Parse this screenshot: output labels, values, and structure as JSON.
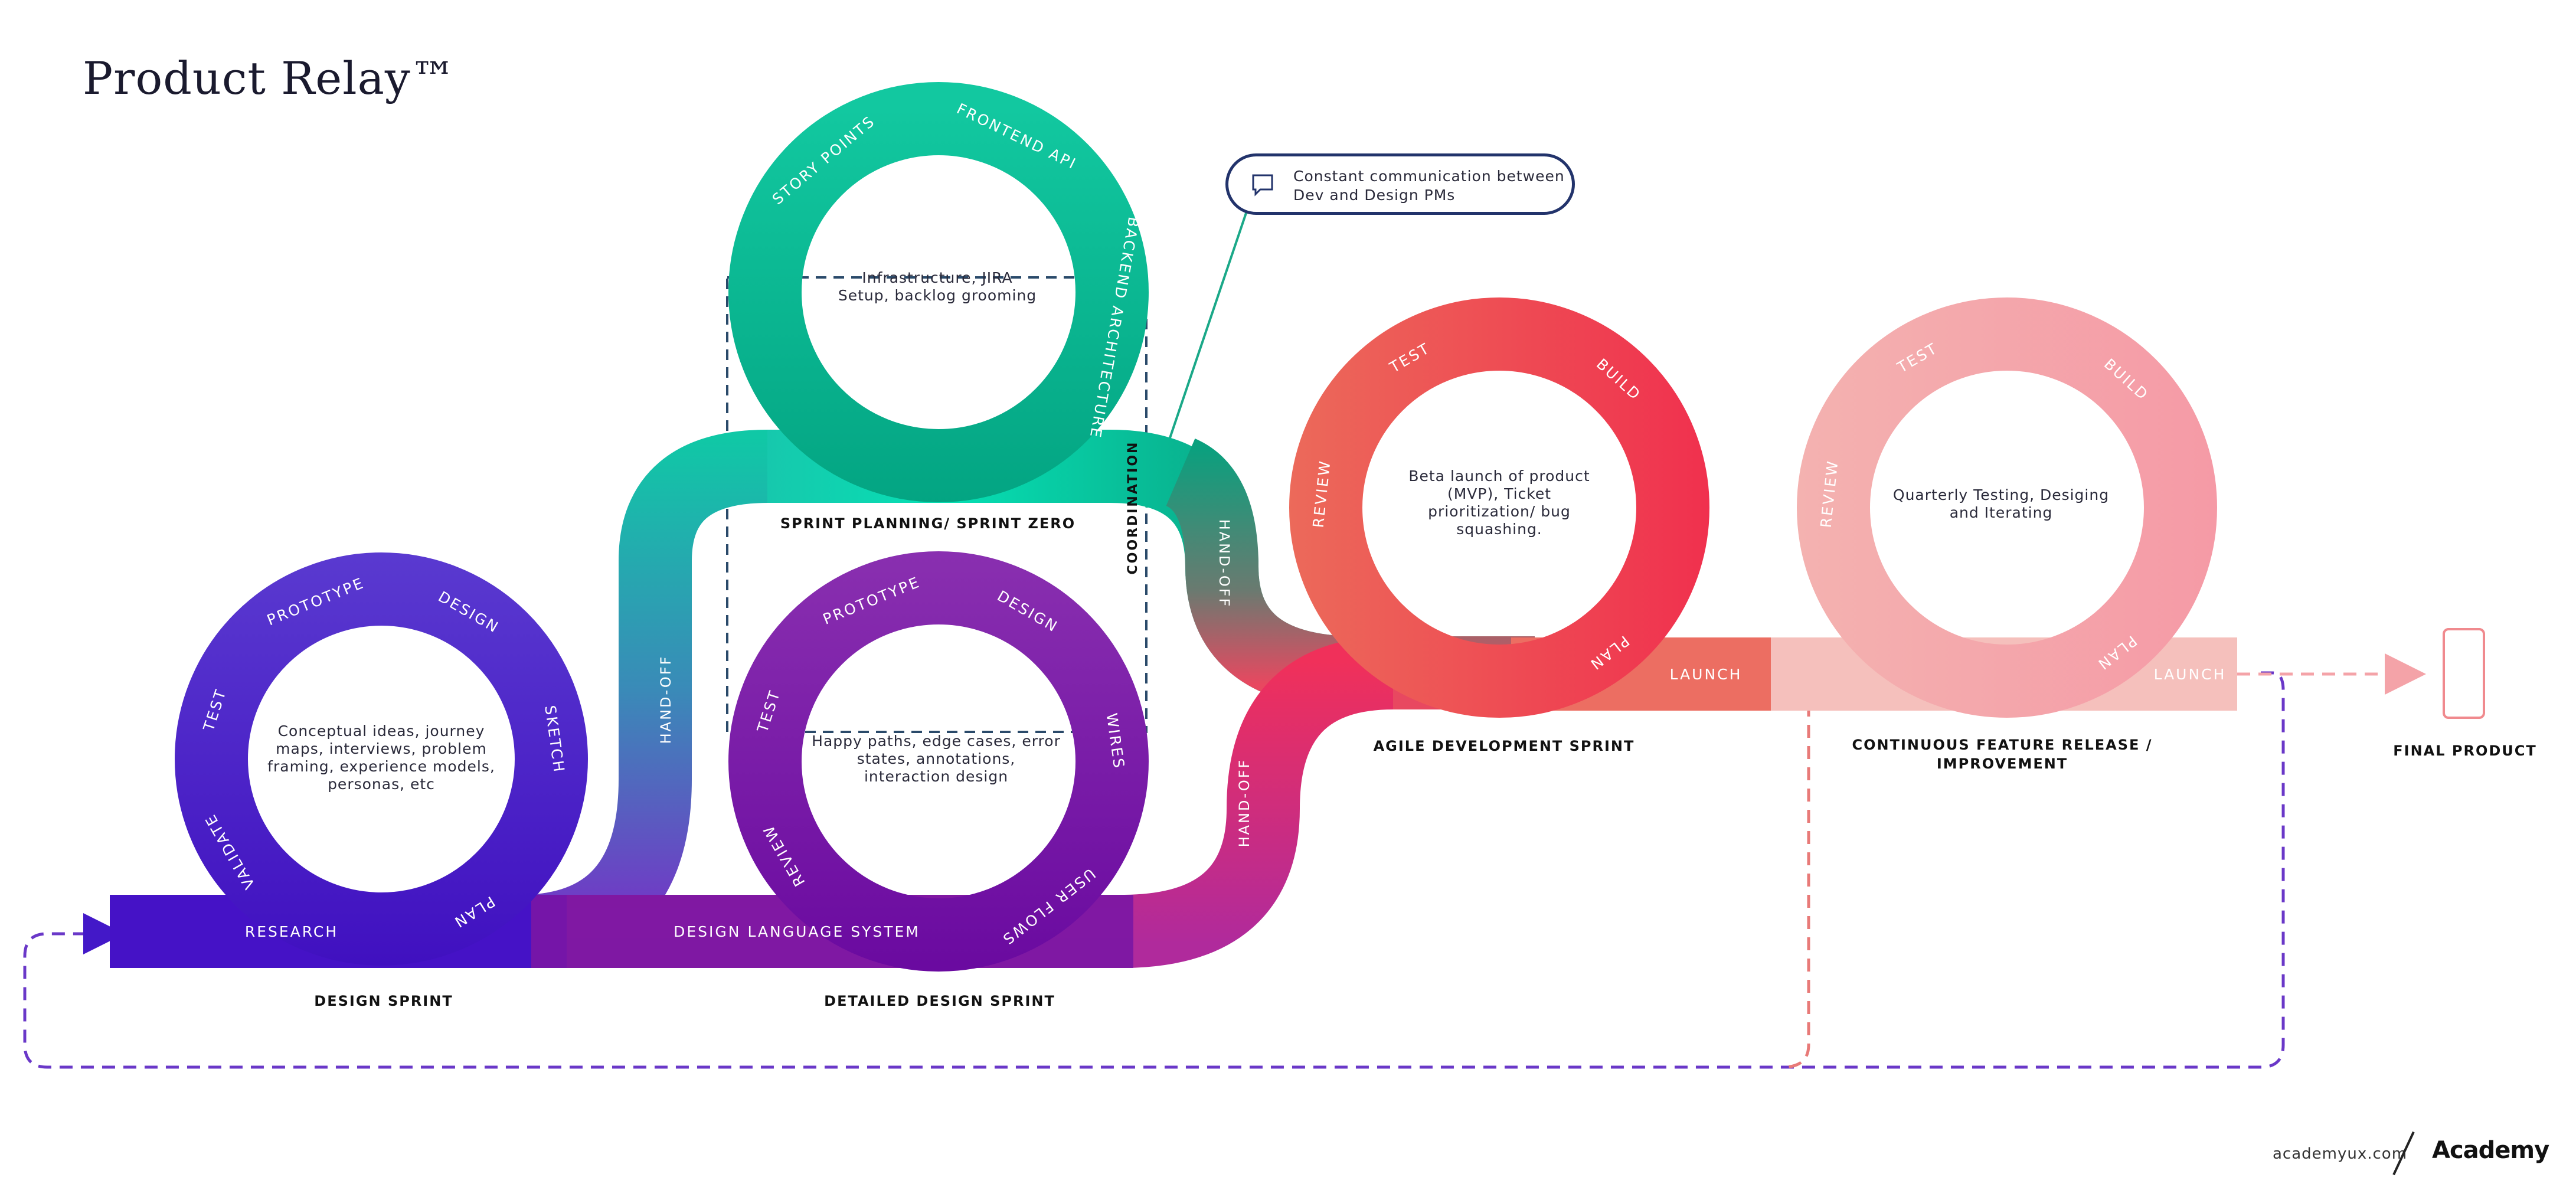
{
  "title": "Product Relay™",
  "callout": {
    "text": "Constant communication between Dev and Design PMs",
    "icon": "speech-bubble-icon"
  },
  "cycles": {
    "design_sprint": {
      "name": "DESIGN SPRINT",
      "description": "Conceptual ideas, journey maps, interviews, problem framing, experience models, personas, etc",
      "steps": [
        "PROTOTYPE",
        "DESIGN",
        "SKETCH",
        "PLAN",
        "VALIDATE",
        "TEST"
      ],
      "phase": "RESEARCH"
    },
    "sprint_zero": {
      "name": "SPRINT PLANNING/ SPRINT ZERO",
      "description": "Infrastructure, JIRA Setup, backlog grooming",
      "steps": [
        "STORY POINTS",
        "FRONTEND API",
        "BACKEND ARCHITECTURE"
      ]
    },
    "detailed_design": {
      "name": "DETAILED DESIGN SPRINT",
      "description": "Happy paths, edge cases, error states, annotations, interaction design",
      "steps": [
        "PROTOTYPE",
        "DESIGN",
        "WIRES",
        "USER FLOWS",
        "REVIEW",
        "TEST"
      ],
      "phase": "DESIGN LANGUAGE SYSTEM"
    },
    "agile_dev": {
      "name": "AGILE DEVELOPMENT SPRINT",
      "description": "Beta launch of product (MVP), Ticket prioritization/ bug squashing.",
      "steps": [
        "TEST",
        "BUILD",
        "PLAN",
        "REVIEW"
      ],
      "phase": "LAUNCH"
    },
    "continuous": {
      "name": "CONTINUOUS FEATURE RELEASE / IMPROVEMENT",
      "description": "Quarterly Testing, Desiging and Iterating",
      "steps": [
        "TEST",
        "BUILD",
        "PLAN",
        "REVIEW"
      ],
      "phase": "LAUNCH"
    }
  },
  "connectors": {
    "handoff": "HAND-OFF",
    "coordination": "COORDINATION"
  },
  "final": {
    "name": "FINAL PRODUCT",
    "icon": "phone-icon"
  },
  "footer": {
    "url": "academyux.com",
    "logo": "Academy"
  },
  "colors": {
    "indigo": "#4318c8",
    "purple": "#7a12a0",
    "teal": "#07c9a6",
    "red": "#f03b5a",
    "pink": "#f5a3ab",
    "navy": "#22336b"
  }
}
